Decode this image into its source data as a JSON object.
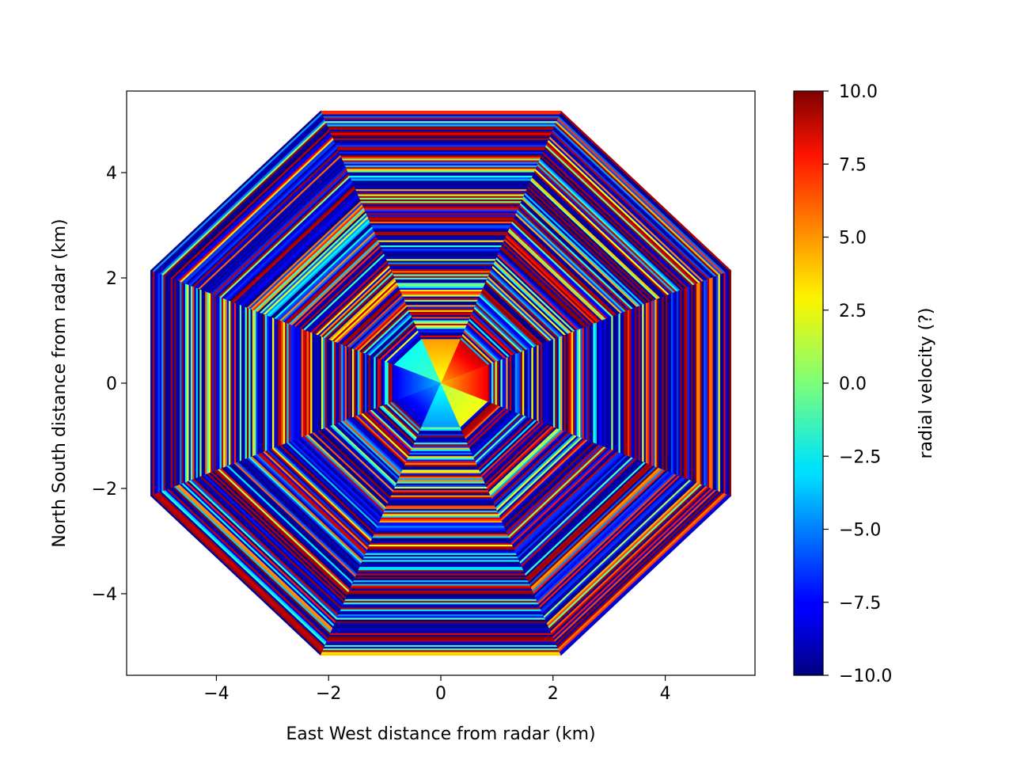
{
  "chart_data": {
    "type": "heatmap",
    "subtype": "radar PPI (octagonal sweep, 8 sectors)",
    "xlabel": "East West distance from radar (km)",
    "ylabel": "North South distance from radar (km)",
    "xlim": [
      -5.6,
      5.6
    ],
    "ylim": [
      -5.55,
      5.55
    ],
    "xticks": [
      -4,
      -2,
      0,
      2,
      4
    ],
    "yticks": [
      -4,
      -2,
      0,
      2,
      4
    ],
    "xtick_labels": [
      "−4",
      "−2",
      "0",
      "2",
      "4"
    ],
    "ytick_labels": [
      "−4",
      "−2",
      "0",
      "2",
      "4"
    ],
    "grid": false,
    "colormap": "jet",
    "colorbar": {
      "label": "radial velocity (?)",
      "vmin": -10.0,
      "vmax": 10.0,
      "ticks": [
        10.0,
        7.5,
        5.0,
        2.5,
        0.0,
        -2.5,
        -5.0,
        -7.5,
        -10.0
      ],
      "tick_labels": [
        "10.0",
        "7.5",
        "5.0",
        "2.5",
        "0.0",
        "−2.5",
        "−5.0",
        "−7.5",
        "−10.0"
      ]
    },
    "sweep": {
      "sectors": 8,
      "max_range_km": 5.6,
      "inner_coherent_range_km": 0.9,
      "outer_field": "noisy (aliased) velocities spanning -10 to 10"
    }
  }
}
